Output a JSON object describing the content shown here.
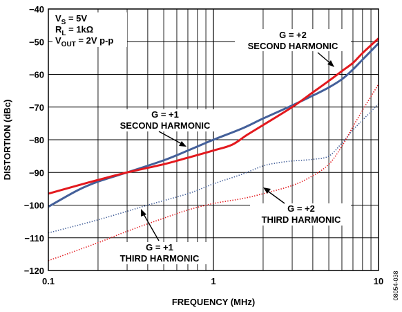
{
  "chart_data": {
    "type": "line",
    "title": "",
    "xlabel": "FREQUENCY (MHz)",
    "ylabel": "DISTORTION (dBc)",
    "x_scale": "log",
    "xlim": [
      0.1,
      10
    ],
    "ylim": [
      -120,
      -40
    ],
    "x_ticks": [
      "0.1",
      "1",
      "10"
    ],
    "y_ticks": [
      "−40",
      "−50",
      "−60",
      "−70",
      "−80",
      "−90",
      "−100",
      "−110",
      "−120"
    ],
    "grid": true,
    "conditions": {
      "vs": {
        "main": "V",
        "sub": "S",
        "rest": " = 5V"
      },
      "rl": {
        "main": "R",
        "sub": "L",
        "rest": " = 1kΩ"
      },
      "vout": {
        "main": "V",
        "sub": "OUT",
        "rest": " = 2V p-p"
      }
    },
    "series": [
      {
        "key": "g1_second",
        "color": "#44609a",
        "style": "solid",
        "points": [
          [
            0.1,
            -100.5
          ],
          [
            0.15,
            -95.5
          ],
          [
            0.2,
            -92.8
          ],
          [
            0.3,
            -90
          ],
          [
            0.5,
            -86.3
          ],
          [
            0.7,
            -83.3
          ],
          [
            1,
            -80
          ],
          [
            1.5,
            -76.5
          ],
          [
            2,
            -73.5
          ],
          [
            3,
            -69.5
          ],
          [
            4,
            -66.5
          ],
          [
            5,
            -64
          ],
          [
            6,
            -61.5
          ],
          [
            7,
            -58.5
          ],
          [
            8,
            -55.5
          ],
          [
            10,
            -50.5
          ]
        ]
      },
      {
        "key": "g2_second",
        "color": "#e3191e",
        "style": "solid",
        "points": [
          [
            0.1,
            -96.5
          ],
          [
            0.15,
            -94
          ],
          [
            0.2,
            -92.3
          ],
          [
            0.3,
            -90
          ],
          [
            0.5,
            -87.5
          ],
          [
            0.7,
            -85.5
          ],
          [
            1,
            -83.3
          ],
          [
            1.3,
            -81.5
          ],
          [
            1.6,
            -78.5
          ],
          [
            2,
            -75.5
          ],
          [
            3,
            -70
          ],
          [
            4,
            -65.5
          ],
          [
            5,
            -62
          ],
          [
            6,
            -59
          ],
          [
            7,
            -56.5
          ],
          [
            8,
            -53.5
          ],
          [
            10,
            -49
          ]
        ]
      },
      {
        "key": "g1_third",
        "color": "#44609a",
        "style": "dotted",
        "points": [
          [
            0.1,
            -108.5
          ],
          [
            0.2,
            -104.5
          ],
          [
            0.4,
            -100
          ],
          [
            0.7,
            -96.5
          ],
          [
            1,
            -93.5
          ],
          [
            1.5,
            -90.5
          ],
          [
            2,
            -88
          ],
          [
            2.5,
            -87
          ],
          [
            3,
            -86.5
          ],
          [
            4,
            -86
          ],
          [
            5,
            -85
          ],
          [
            6,
            -81
          ],
          [
            7,
            -77
          ],
          [
            8,
            -74
          ],
          [
            10,
            -69
          ]
        ]
      },
      {
        "key": "g2_third",
        "color": "#e3191e",
        "style": "dotted",
        "points": [
          [
            0.1,
            -117
          ],
          [
            0.2,
            -111.5
          ],
          [
            0.3,
            -108
          ],
          [
            0.5,
            -104
          ],
          [
            0.7,
            -101.5
          ],
          [
            1,
            -99.5
          ],
          [
            1.5,
            -98
          ],
          [
            2,
            -96.5
          ],
          [
            3,
            -94
          ],
          [
            4,
            -91
          ],
          [
            5,
            -87.5
          ],
          [
            6,
            -82
          ],
          [
            7,
            -76
          ],
          [
            8,
            -71
          ],
          [
            10,
            -63
          ]
        ]
      }
    ],
    "annotations": [
      {
        "key": "g2_second_label",
        "lines": [
          "G = +2",
          "SECOND HARMONIC"
        ]
      },
      {
        "key": "g1_second_label",
        "lines": [
          "G = +1",
          "SECOND HARMONIC"
        ]
      },
      {
        "key": "g2_third_label",
        "lines": [
          "G = +2",
          "THIRD HARMONIC"
        ]
      },
      {
        "key": "g1_third_label",
        "lines": [
          "G = +1",
          "THIRD HARMONIC"
        ]
      }
    ],
    "figure_code": "08054-038"
  }
}
